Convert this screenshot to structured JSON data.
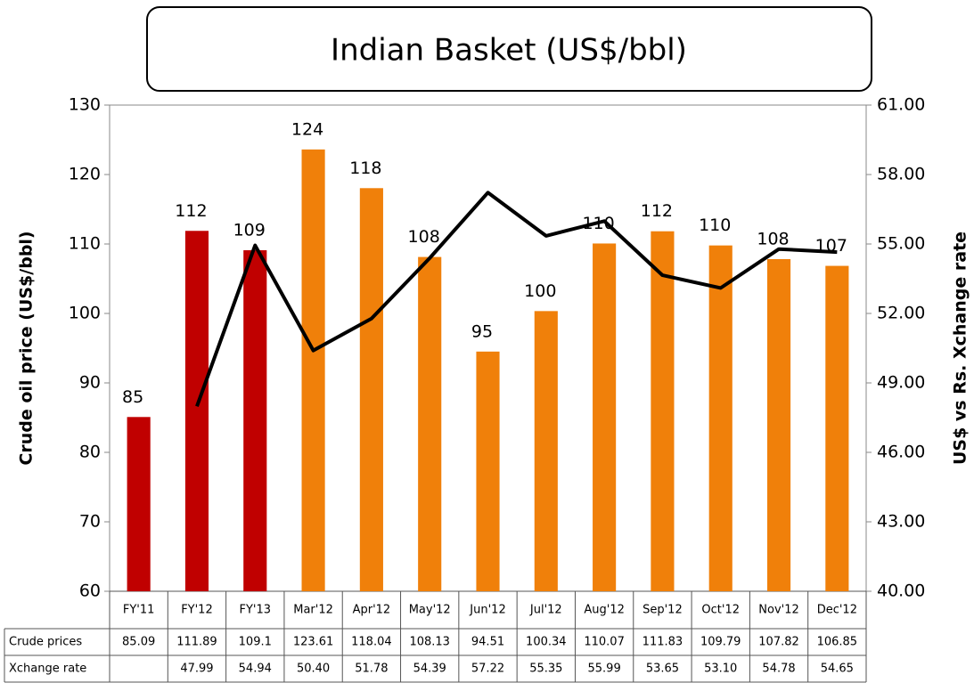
{
  "chart_data": {
    "type": "bar-line",
    "title": "Indian Basket (US$/bbl)",
    "ylabel": "Crude oil price (US$/bbl)",
    "y2label": "US$ vs Rs. Xchange rate",
    "categories": [
      "FY'11",
      "FY'12",
      "FY'13",
      "Mar'12",
      "Apr'12",
      "May'12",
      "Jun'12",
      "Jul'12",
      "Aug'12",
      "Sep'12",
      "Oct'12",
      "Nov'12",
      "Dec'12"
    ],
    "series": [
      {
        "name": "Crude prices",
        "type": "bar",
        "colors": [
          "#c00000",
          "#c00000",
          "#c00000",
          "#f0800a",
          "#f0800a",
          "#f0800a",
          "#f0800a",
          "#f0800a",
          "#f0800a",
          "#f0800a",
          "#f0800a",
          "#f0800a",
          "#f0800a"
        ],
        "values": [
          85.09,
          111.89,
          109.1,
          123.61,
          118.04,
          108.13,
          94.51,
          100.34,
          110.07,
          111.83,
          109.79,
          107.82,
          106.85
        ],
        "value_labels": [
          "85",
          "112",
          "109",
          "124",
          "118",
          "108",
          "95",
          "100",
          "110",
          "112",
          "110",
          "108",
          "107"
        ]
      },
      {
        "name": "Xchange rate",
        "type": "line",
        "axis": "y2",
        "color": "#000000",
        "values": [
          null,
          47.99,
          54.94,
          50.4,
          51.78,
          54.39,
          57.22,
          55.35,
          55.99,
          53.65,
          53.1,
          54.78,
          54.65
        ],
        "value_labels": [
          null,
          "47.99",
          "54.94",
          "50.40",
          "51.78",
          "54.39",
          "57.22",
          "55.35",
          "55.99",
          "53.65",
          "53.10",
          "54.78",
          "54.65"
        ]
      }
    ],
    "ylim": [
      60,
      130
    ],
    "yticks": [
      60,
      70,
      80,
      90,
      100,
      110,
      120,
      130
    ],
    "y2lim": [
      40,
      61
    ],
    "y2ticks": [
      {
        "value": 40,
        "label": "40.00"
      },
      {
        "value": 43,
        "label": "43.00"
      },
      {
        "value": 46,
        "label": "46.00"
      },
      {
        "value": 49,
        "label": "49.00"
      },
      {
        "value": 52,
        "label": "52.00"
      },
      {
        "value": 55,
        "label": "55.00"
      },
      {
        "value": 58,
        "label": "58.00"
      },
      {
        "value": 61,
        "label": "61.00"
      }
    ]
  }
}
